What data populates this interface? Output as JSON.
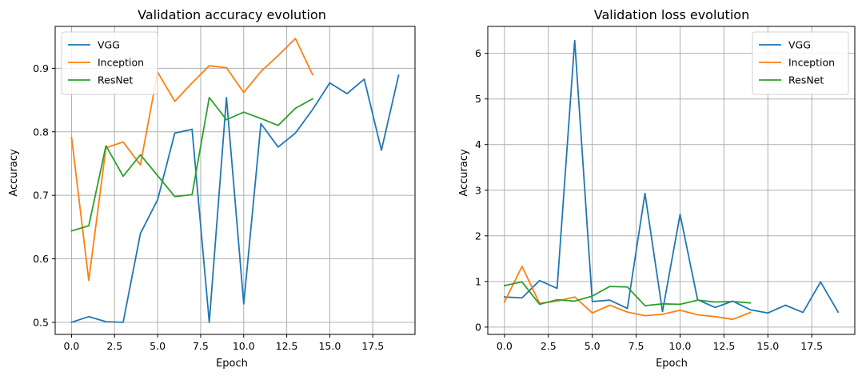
{
  "colors": {
    "VGG": "#1f77b4",
    "Inception": "#ff7f0e",
    "ResNet": "#2ca02c",
    "grid": "#b0b0b0"
  },
  "chart_data": [
    {
      "type": "line",
      "title": "Validation accuracy evolution",
      "xlabel": "Epoch",
      "ylabel": "Accuracy",
      "xlim": [
        -0.95,
        19.95
      ],
      "ylim": [
        0.481,
        0.966
      ],
      "xticks": [
        0.0,
        2.5,
        5.0,
        7.5,
        10.0,
        12.5,
        15.0,
        17.5
      ],
      "xtick_labels": [
        "0.0",
        "2.5",
        "5.0",
        "7.5",
        "10.0",
        "12.5",
        "15.0",
        "17.5"
      ],
      "yticks": [
        0.5,
        0.6,
        0.7,
        0.8,
        0.9
      ],
      "ytick_labels": [
        "0.5",
        "0.6",
        "0.7",
        "0.8",
        "0.9"
      ],
      "grid": true,
      "legend_position": "top-left",
      "series": [
        {
          "name": "VGG",
          "x": [
            0,
            1,
            2,
            3,
            4,
            5,
            6,
            7,
            8,
            9,
            10,
            11,
            12,
            13,
            14,
            15,
            16,
            17,
            18,
            19
          ],
          "y": [
            0.5,
            0.509,
            0.501,
            0.5,
            0.64,
            0.693,
            0.798,
            0.804,
            0.5,
            0.854,
            0.529,
            0.813,
            0.776,
            0.798,
            0.835,
            0.877,
            0.86,
            0.883,
            0.771,
            0.889
          ]
        },
        {
          "name": "Inception",
          "x": [
            0,
            1,
            2,
            3,
            4,
            5,
            6,
            7,
            8,
            9,
            10,
            11,
            12,
            13,
            14
          ],
          "y": [
            0.791,
            0.566,
            0.775,
            0.784,
            0.748,
            0.894,
            0.848,
            0.877,
            0.904,
            0.901,
            0.862,
            0.895,
            0.92,
            0.947,
            0.89
          ]
        },
        {
          "name": "ResNet",
          "x": [
            0,
            1,
            2,
            3,
            4,
            5,
            6,
            7,
            8,
            9,
            10,
            11,
            12,
            13,
            14
          ],
          "y": [
            0.644,
            0.652,
            0.778,
            0.73,
            0.764,
            0.731,
            0.698,
            0.701,
            0.854,
            0.819,
            0.831,
            0.821,
            0.81,
            0.837,
            0.852
          ]
        }
      ]
    },
    {
      "type": "line",
      "title": "Validation loss evolution",
      "xlabel": "Epoch",
      "ylabel": "Accuracy",
      "xlim": [
        -0.95,
        19.95
      ],
      "ylim": [
        -0.16,
        6.59
      ],
      "xticks": [
        0.0,
        2.5,
        5.0,
        7.5,
        10.0,
        12.5,
        15.0,
        17.5
      ],
      "xtick_labels": [
        "0.0",
        "2.5",
        "5.0",
        "7.5",
        "10.0",
        "12.5",
        "15.0",
        "17.5"
      ],
      "yticks": [
        0,
        1,
        2,
        3,
        4,
        5,
        6
      ],
      "ytick_labels": [
        "0",
        "1",
        "2",
        "3",
        "4",
        "5",
        "6"
      ],
      "grid": true,
      "legend_position": "top-right",
      "series": [
        {
          "name": "VGG",
          "x": [
            0,
            1,
            2,
            3,
            4,
            5,
            6,
            7,
            8,
            9,
            10,
            11,
            12,
            13,
            14,
            15,
            16,
            17,
            18,
            19
          ],
          "y": [
            0.66,
            0.64,
            1.02,
            0.85,
            6.28,
            0.56,
            0.59,
            0.41,
            2.93,
            0.34,
            2.47,
            0.6,
            0.43,
            0.57,
            0.38,
            0.31,
            0.48,
            0.32,
            0.99,
            0.33
          ]
        },
        {
          "name": "Inception",
          "x": [
            0,
            1,
            2,
            3,
            4,
            5,
            6,
            7,
            8,
            9,
            10,
            11,
            12,
            13,
            14
          ],
          "y": [
            0.55,
            1.33,
            0.52,
            0.57,
            0.66,
            0.31,
            0.48,
            0.33,
            0.25,
            0.28,
            0.37,
            0.27,
            0.23,
            0.17,
            0.32
          ]
        },
        {
          "name": "ResNet",
          "x": [
            0,
            1,
            2,
            3,
            4,
            5,
            6,
            7,
            8,
            9,
            10,
            11,
            12,
            13,
            14
          ],
          "y": [
            0.91,
            0.99,
            0.5,
            0.6,
            0.57,
            0.68,
            0.89,
            0.88,
            0.47,
            0.51,
            0.5,
            0.59,
            0.55,
            0.56,
            0.53
          ]
        }
      ]
    }
  ]
}
